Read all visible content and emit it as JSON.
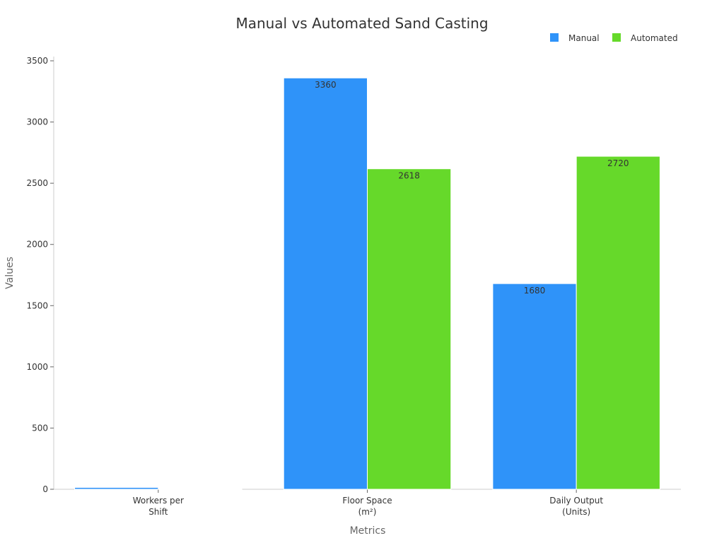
{
  "chart_data": {
    "type": "bar",
    "title": "Manual vs Automated Sand Casting",
    "xlabel": "Metrics",
    "ylabel": "Values",
    "categories": [
      [
        "Workers per",
        "Shift"
      ],
      [
        "Floor Space",
        "(m²)"
      ],
      [
        "Daily Output",
        "(Units)"
      ]
    ],
    "series": [
      {
        "name": "Manual",
        "color": "#2f93f9",
        "values": [
          15,
          3360,
          1680
        ],
        "labels": [
          "",
          "3360",
          "1680"
        ]
      },
      {
        "name": "Automated",
        "color": "#66d92a",
        "values": [
          2,
          2618,
          2720
        ],
        "labels": [
          "",
          "2618",
          "2720"
        ]
      }
    ],
    "ylim": [
      0,
      3500
    ],
    "yticks": [
      0,
      500,
      1000,
      1500,
      2000,
      2500,
      3000,
      3500
    ],
    "grid": false,
    "legend": "top-right"
  }
}
